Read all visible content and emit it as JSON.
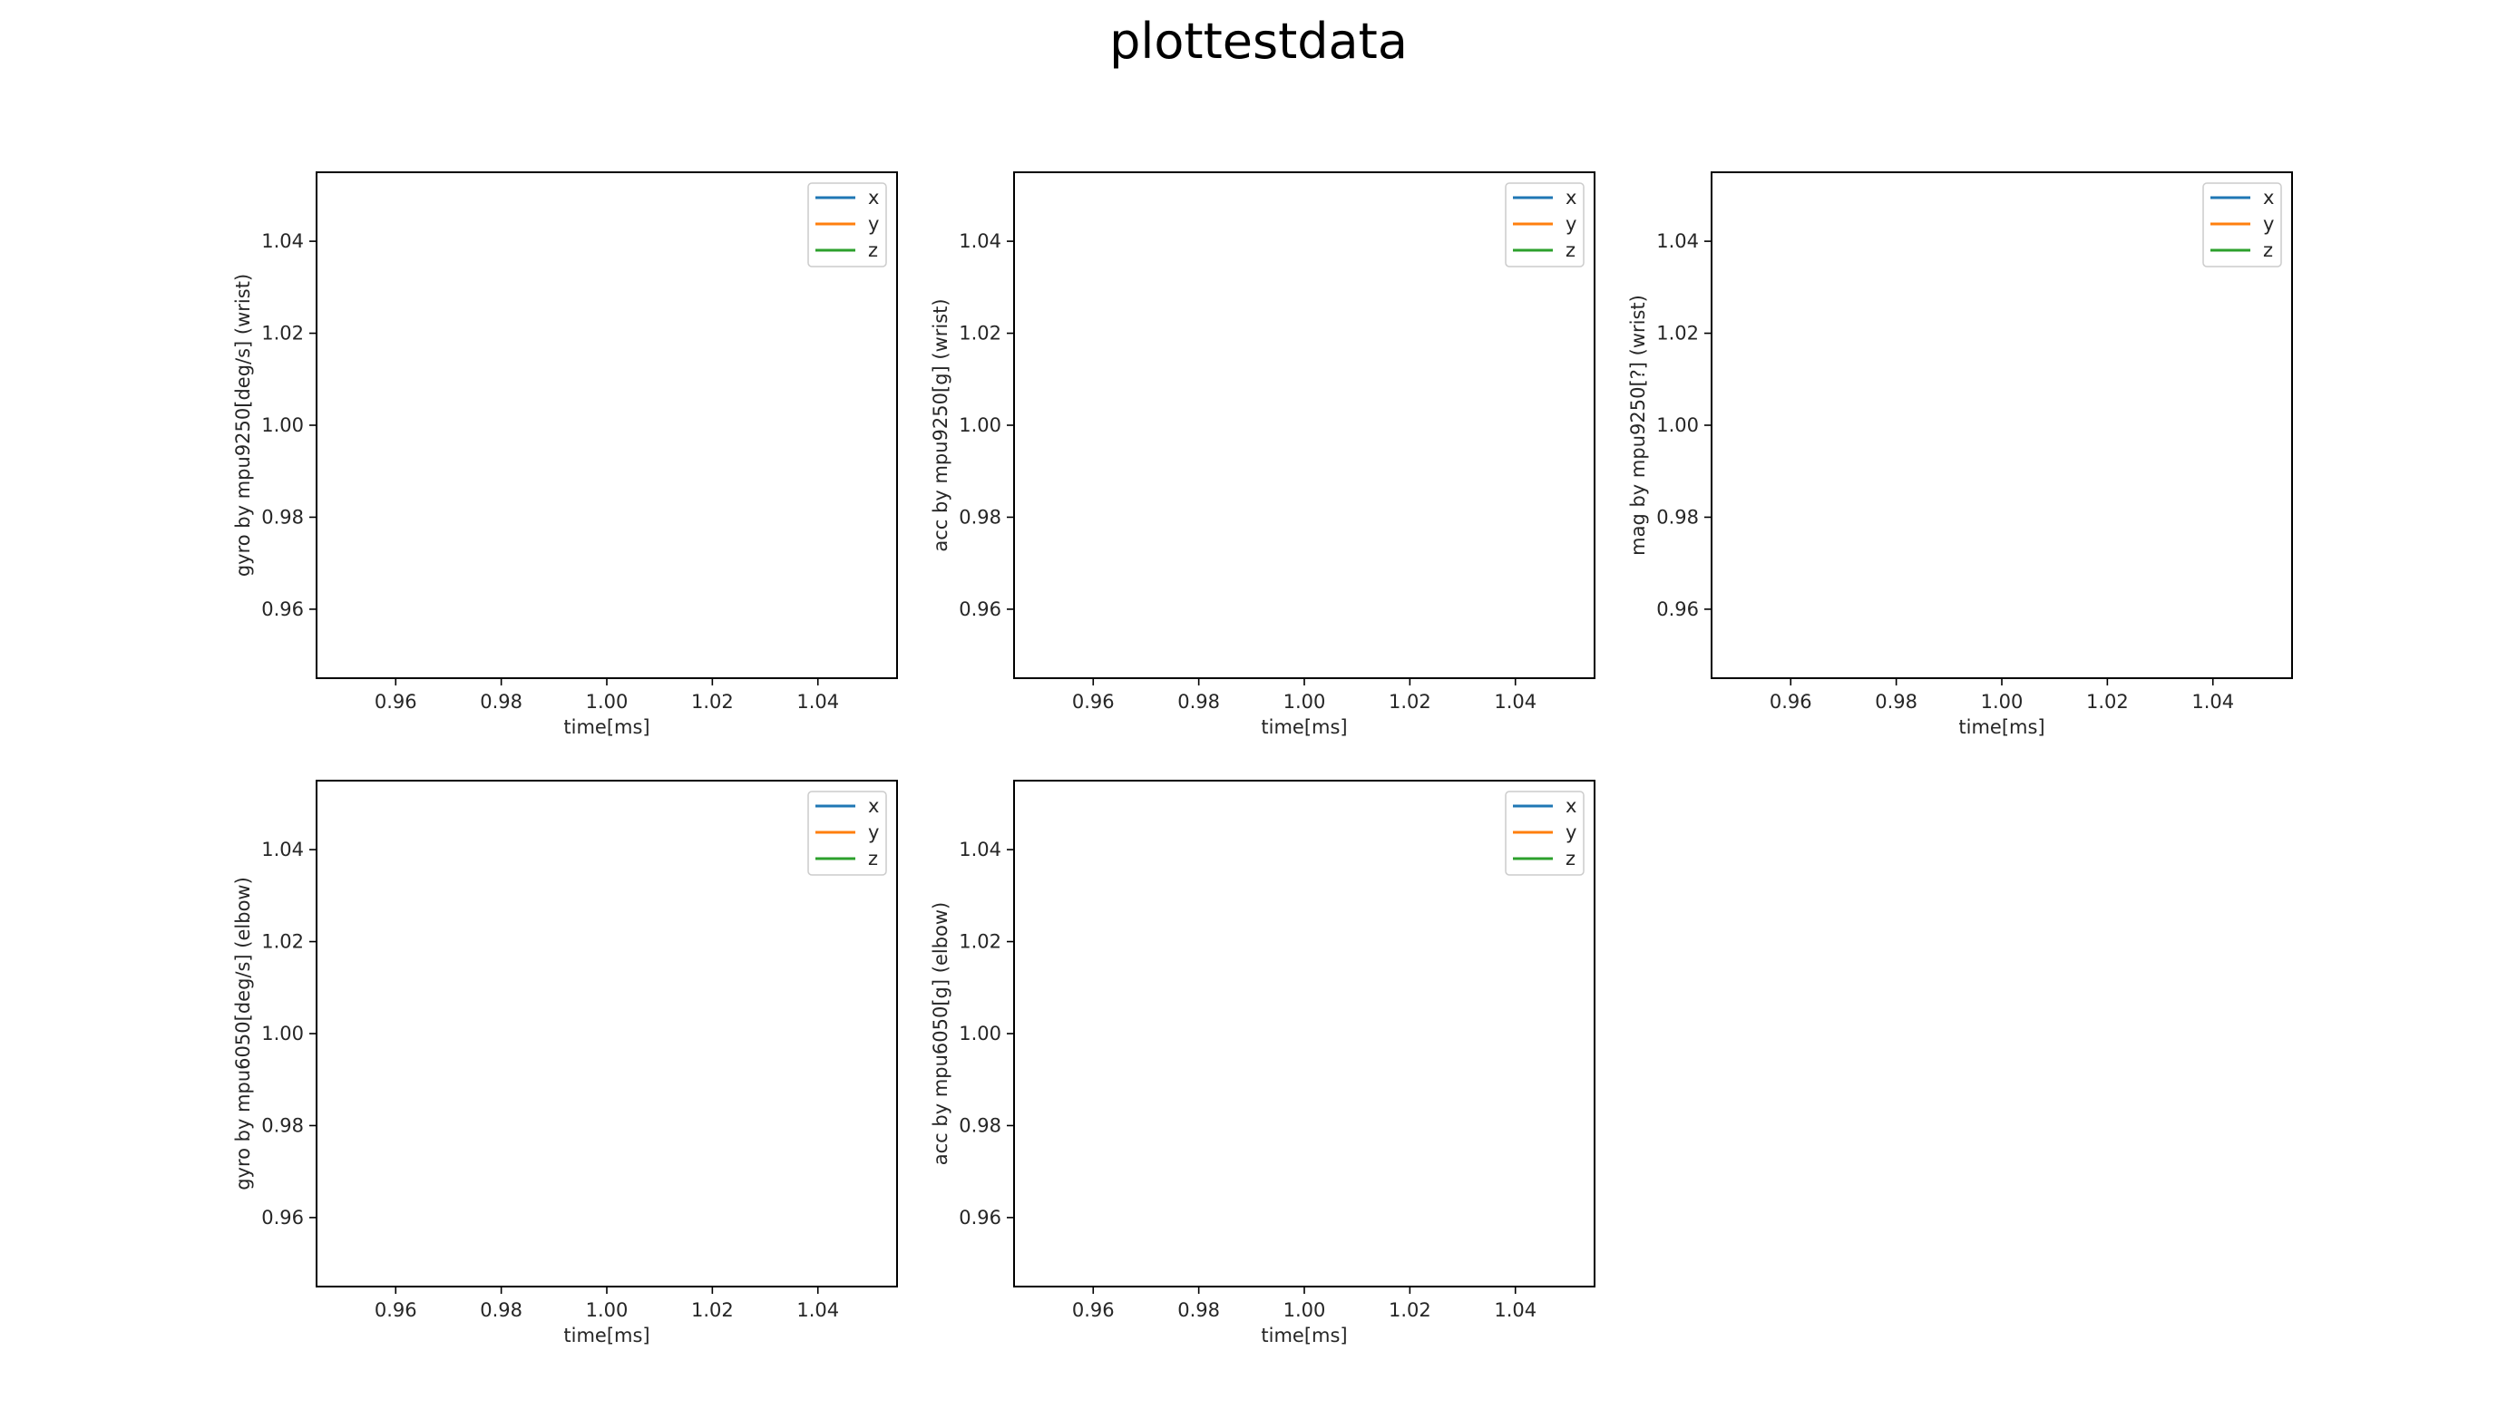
{
  "figure": {
    "title": "plottestdata"
  },
  "colors": {
    "x": "#1f77b4",
    "y": "#ff7f0e",
    "z": "#2ca02c",
    "axes": "#000000",
    "text": "#262626"
  },
  "chart_data": [
    {
      "type": "line",
      "xlabel": "time[ms]",
      "ylabel": "gyro by mpu9250[deg/s] (wrist)",
      "xlim": [
        0.945,
        1.055
      ],
      "ylim": [
        0.945,
        1.055
      ],
      "xticks": [
        0.96,
        0.98,
        1.0,
        1.02,
        1.04
      ],
      "yticks": [
        0.96,
        0.98,
        1.0,
        1.02,
        1.04
      ],
      "xtick_labels": [
        "0.96",
        "0.98",
        "1.00",
        "1.02",
        "1.04"
      ],
      "ytick_labels": [
        "0.96",
        "0.98",
        "1.00",
        "1.02",
        "1.04"
      ],
      "grid": false,
      "legend_position": "top-right",
      "series": [
        {
          "name": "x",
          "values": []
        },
        {
          "name": "y",
          "values": []
        },
        {
          "name": "z",
          "values": []
        }
      ]
    },
    {
      "type": "line",
      "xlabel": "time[ms]",
      "ylabel": "acc by mpu9250[g] (wrist)",
      "xlim": [
        0.945,
        1.055
      ],
      "ylim": [
        0.945,
        1.055
      ],
      "xticks": [
        0.96,
        0.98,
        1.0,
        1.02,
        1.04
      ],
      "yticks": [
        0.96,
        0.98,
        1.0,
        1.02,
        1.04
      ],
      "xtick_labels": [
        "0.96",
        "0.98",
        "1.00",
        "1.02",
        "1.04"
      ],
      "ytick_labels": [
        "0.96",
        "0.98",
        "1.00",
        "1.02",
        "1.04"
      ],
      "grid": false,
      "legend_position": "top-right",
      "series": [
        {
          "name": "x",
          "values": []
        },
        {
          "name": "y",
          "values": []
        },
        {
          "name": "z",
          "values": []
        }
      ]
    },
    {
      "type": "line",
      "xlabel": "time[ms]",
      "ylabel": "mag by mpu9250[?] (wrist)",
      "xlim": [
        0.945,
        1.055
      ],
      "ylim": [
        0.945,
        1.055
      ],
      "xticks": [
        0.96,
        0.98,
        1.0,
        1.02,
        1.04
      ],
      "yticks": [
        0.96,
        0.98,
        1.0,
        1.02,
        1.04
      ],
      "xtick_labels": [
        "0.96",
        "0.98",
        "1.00",
        "1.02",
        "1.04"
      ],
      "ytick_labels": [
        "0.96",
        "0.98",
        "1.00",
        "1.02",
        "1.04"
      ],
      "grid": false,
      "legend_position": "top-right",
      "series": [
        {
          "name": "x",
          "values": []
        },
        {
          "name": "y",
          "values": []
        },
        {
          "name": "z",
          "values": []
        }
      ]
    },
    {
      "type": "line",
      "xlabel": "time[ms]",
      "ylabel": "gyro by mpu6050[deg/s] (elbow)",
      "xlim": [
        0.945,
        1.055
      ],
      "ylim": [
        0.945,
        1.055
      ],
      "xticks": [
        0.96,
        0.98,
        1.0,
        1.02,
        1.04
      ],
      "yticks": [
        0.96,
        0.98,
        1.0,
        1.02,
        1.04
      ],
      "xtick_labels": [
        "0.96",
        "0.98",
        "1.00",
        "1.02",
        "1.04"
      ],
      "ytick_labels": [
        "0.96",
        "0.98",
        "1.00",
        "1.02",
        "1.04"
      ],
      "grid": false,
      "legend_position": "top-right",
      "series": [
        {
          "name": "x",
          "values": []
        },
        {
          "name": "y",
          "values": []
        },
        {
          "name": "z",
          "values": []
        }
      ]
    },
    {
      "type": "line",
      "xlabel": "time[ms]",
      "ylabel": "acc by mpu6050[g] (elbow)",
      "xlim": [
        0.945,
        1.055
      ],
      "ylim": [
        0.945,
        1.055
      ],
      "xticks": [
        0.96,
        0.98,
        1.0,
        1.02,
        1.04
      ],
      "yticks": [
        0.96,
        0.98,
        1.0,
        1.02,
        1.04
      ],
      "xtick_labels": [
        "0.96",
        "0.98",
        "1.00",
        "1.02",
        "1.04"
      ],
      "ytick_labels": [
        "0.96",
        "0.98",
        "1.00",
        "1.02",
        "1.04"
      ],
      "grid": false,
      "legend_position": "top-right",
      "series": [
        {
          "name": "x",
          "values": []
        },
        {
          "name": "y",
          "values": []
        },
        {
          "name": "z",
          "values": []
        }
      ]
    }
  ]
}
